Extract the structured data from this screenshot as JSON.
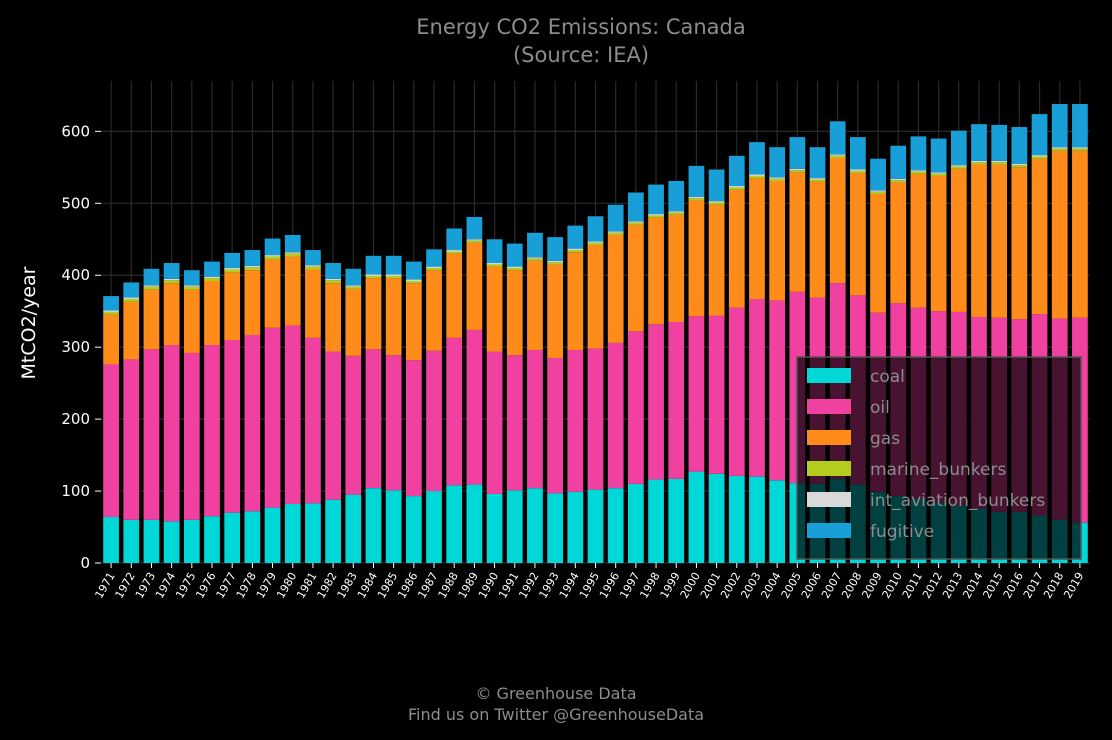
{
  "chart_data": {
    "type": "bar",
    "stacked": true,
    "title": "Energy CO2 Emissions: Canada",
    "subtitle": "(Source: IEA)",
    "ylabel": "MtCO2/year",
    "xlabel": "",
    "ylim": [
      0,
      670
    ],
    "yticks": [
      0,
      100,
      200,
      300,
      400,
      500,
      600
    ],
    "grid": true,
    "legend_position": "lower-right",
    "categories": [
      "1971",
      "1972",
      "1973",
      "1974",
      "1975",
      "1976",
      "1977",
      "1978",
      "1979",
      "1980",
      "1981",
      "1982",
      "1983",
      "1984",
      "1985",
      "1986",
      "1987",
      "1988",
      "1989",
      "1990",
      "1991",
      "1992",
      "1993",
      "1994",
      "1995",
      "1996",
      "1997",
      "1998",
      "1999",
      "2000",
      "2001",
      "2002",
      "2003",
      "2004",
      "2005",
      "2006",
      "2007",
      "2008",
      "2009",
      "2010",
      "2011",
      "2012",
      "2013",
      "2014",
      "2015",
      "2016",
      "2017",
      "2018",
      "2019"
    ],
    "series": [
      {
        "name": "coal",
        "color": "#00d7d7",
        "values": [
          64,
          60,
          60,
          58,
          60,
          65,
          70,
          72,
          77,
          82,
          83,
          88,
          95,
          104,
          101,
          93,
          100,
          108,
          109,
          96,
          101,
          104,
          97,
          99,
          102,
          104,
          110,
          116,
          117,
          127,
          124,
          121,
          120,
          115,
          111,
          110,
          117,
          109,
          99,
          93,
          89,
          84,
          80,
          76,
          71,
          71,
          66,
          60,
          56
        ]
      },
      {
        "name": "oil",
        "color": "#f040a0",
        "values": [
          212,
          223,
          237,
          245,
          232,
          238,
          240,
          245,
          250,
          248,
          230,
          206,
          193,
          193,
          188,
          189,
          195,
          205,
          215,
          198,
          188,
          192,
          188,
          197,
          196,
          202,
          212,
          216,
          218,
          216,
          220,
          234,
          247,
          250,
          266,
          259,
          272,
          263,
          249,
          268,
          266,
          266,
          269,
          266,
          270,
          268,
          280,
          280,
          285
        ]
      },
      {
        "name": "gas",
        "color": "#ff8c1a",
        "values": [
          69,
          80,
          83,
          86,
          88,
          89,
          94,
          90,
          95,
          96,
          95,
          95,
          93,
          99,
          107,
          107,
          112,
          117,
          121,
          118,
          118,
          124,
          130,
          136,
          144,
          150,
          148,
          148,
          149,
          161,
          154,
          164,
          168,
          166,
          166,
          161,
          174,
          170,
          165,
          168,
          186,
          188,
          199,
          212,
          213,
          211,
          216,
          233,
          232
        ]
      },
      {
        "name": "marine_bunkers",
        "color": "#b4cc1e",
        "values": [
          4,
          4,
          4,
          4,
          4,
          4,
          4,
          4,
          4,
          4,
          4,
          4,
          3,
          3,
          3,
          3,
          3,
          3,
          3,
          3,
          3,
          3,
          3,
          3,
          3,
          3,
          3,
          3,
          3,
          3,
          3,
          3,
          3,
          3,
          3,
          3,
          3,
          3,
          3,
          3,
          3,
          3,
          3,
          3,
          3,
          3,
          3,
          3,
          3
        ]
      },
      {
        "name": "int_aviation_bunkers",
        "color": "#d9d9d9",
        "values": [
          2,
          2,
          2,
          2,
          2,
          2,
          2,
          2,
          2,
          2,
          2,
          2,
          2,
          2,
          2,
          2,
          2,
          2,
          2,
          2,
          2,
          2,
          2,
          2,
          2,
          2,
          2,
          2,
          2,
          2,
          2,
          2,
          2,
          2,
          2,
          2,
          2,
          2,
          2,
          2,
          2,
          2,
          2,
          2,
          2,
          2,
          2,
          2,
          2
        ]
      },
      {
        "name": "fugitive",
        "color": "#199fd8",
        "values": [
          20,
          21,
          23,
          22,
          21,
          21,
          21,
          22,
          23,
          24,
          21,
          22,
          23,
          26,
          26,
          25,
          24,
          30,
          31,
          33,
          32,
          34,
          33,
          32,
          35,
          37,
          40,
          41,
          42,
          43,
          44,
          42,
          45,
          42,
          44,
          43,
          46,
          45,
          44,
          46,
          47,
          47,
          48,
          51,
          50,
          51,
          57,
          60,
          60
        ]
      }
    ]
  },
  "footer": {
    "line1": "© Greenhouse Data",
    "line2": "Find us on Twitter @GreenhouseData"
  }
}
